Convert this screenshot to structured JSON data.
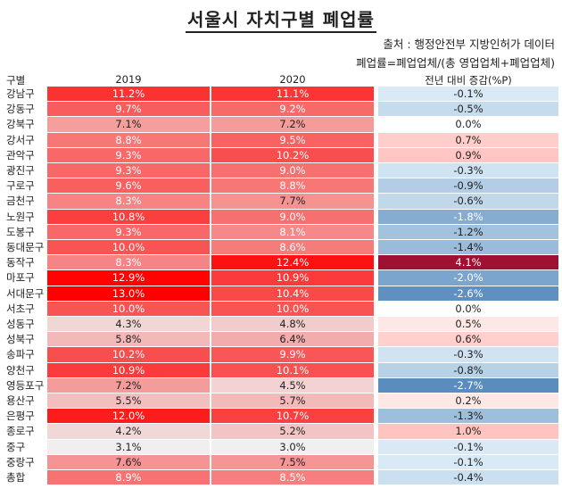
{
  "header": {
    "title": "서울시 자치구별 폐업률",
    "source": "출처 : 행정안전부 지방인허가 데이터",
    "formula": "폐업률=폐업업체/(총 영업업체+폐업업체)"
  },
  "chart_data": {
    "type": "table",
    "columns": [
      "구별",
      "2019",
      "2020",
      "전년 대비 증감(%P)"
    ],
    "rows": [
      {
        "label": "강남구",
        "v2019": "11.2%",
        "v2020": "11.1%",
        "diff": "-0.1%"
      },
      {
        "label": "강동구",
        "v2019": "9.7%",
        "v2020": "9.2%",
        "diff": "-0.5%"
      },
      {
        "label": "강북구",
        "v2019": "7.1%",
        "v2020": "7.2%",
        "diff": "0.0%"
      },
      {
        "label": "강서구",
        "v2019": "8.8%",
        "v2020": "9.5%",
        "diff": "0.7%"
      },
      {
        "label": "관악구",
        "v2019": "9.3%",
        "v2020": "10.2%",
        "diff": "0.9%"
      },
      {
        "label": "광진구",
        "v2019": "9.3%",
        "v2020": "9.0%",
        "diff": "-0.3%"
      },
      {
        "label": "구로구",
        "v2019": "9.6%",
        "v2020": "8.8%",
        "diff": "-0.9%"
      },
      {
        "label": "금천구",
        "v2019": "8.3%",
        "v2020": "7.7%",
        "diff": "-0.6%"
      },
      {
        "label": "노원구",
        "v2019": "10.8%",
        "v2020": "9.0%",
        "diff": "-1.8%"
      },
      {
        "label": "도봉구",
        "v2019": "9.3%",
        "v2020": "8.1%",
        "diff": "-1.2%"
      },
      {
        "label": "동대문구",
        "v2019": "10.0%",
        "v2020": "8.6%",
        "diff": "-1.4%"
      },
      {
        "label": "동작구",
        "v2019": "8.3%",
        "v2020": "12.4%",
        "diff": "4.1%"
      },
      {
        "label": "마포구",
        "v2019": "12.9%",
        "v2020": "10.9%",
        "diff": "-2.0%"
      },
      {
        "label": "서대문구",
        "v2019": "13.0%",
        "v2020": "10.4%",
        "diff": "-2.6%"
      },
      {
        "label": "서초구",
        "v2019": "10.0%",
        "v2020": "10.0%",
        "diff": "0.0%"
      },
      {
        "label": "성동구",
        "v2019": "4.3%",
        "v2020": "4.8%",
        "diff": "0.5%"
      },
      {
        "label": "성북구",
        "v2019": "5.8%",
        "v2020": "6.4%",
        "diff": "0.6%"
      },
      {
        "label": "송파구",
        "v2019": "10.2%",
        "v2020": "9.9%",
        "diff": "-0.3%"
      },
      {
        "label": "양천구",
        "v2019": "10.9%",
        "v2020": "10.1%",
        "diff": "-0.8%"
      },
      {
        "label": "영등포구",
        "v2019": "7.2%",
        "v2020": "4.5%",
        "diff": "-2.7%"
      },
      {
        "label": "용산구",
        "v2019": "5.5%",
        "v2020": "5.7%",
        "diff": "0.2%"
      },
      {
        "label": "은평구",
        "v2019": "12.0%",
        "v2020": "10.7%",
        "diff": "-1.3%"
      },
      {
        "label": "종로구",
        "v2019": "4.2%",
        "v2020": "5.2%",
        "diff": "1.0%"
      },
      {
        "label": "중구",
        "v2019": "3.1%",
        "v2020": "3.0%",
        "diff": "-0.1%"
      },
      {
        "label": "중랑구",
        "v2019": "7.6%",
        "v2020": "7.5%",
        "diff": "-0.1%"
      },
      {
        "label": "총합",
        "v2019": "8.9%",
        "v2020": "8.5%",
        "diff": "-0.4%"
      }
    ]
  }
}
